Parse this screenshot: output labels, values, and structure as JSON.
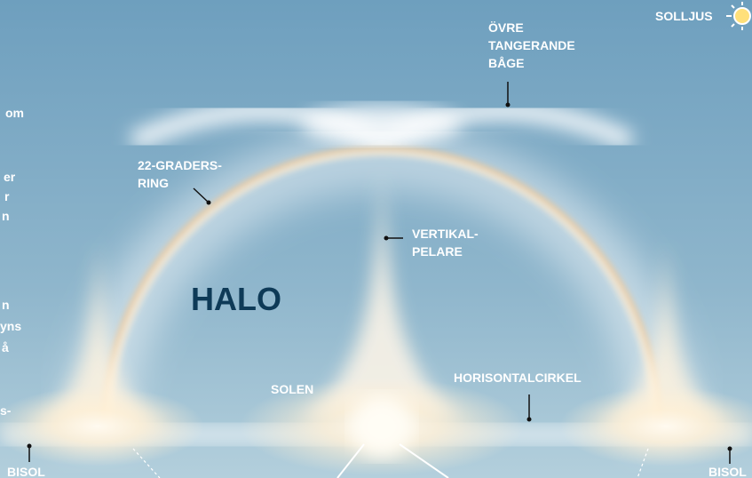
{
  "labels": {
    "sunlight": "SOLLJUS",
    "upper_tangent_arc": [
      "ÖVRE",
      "TANGERANDE",
      "BÅGE"
    ],
    "ring_22": [
      "22-GRADERS-",
      "RING"
    ],
    "vertical_pillar": [
      "VERTIKAL-",
      "PELARE"
    ],
    "halo": "HALO",
    "sun": "SOLEN",
    "horizontal_circle": "HORISONTALCIRKEL",
    "sundog_left": "BISOL",
    "sundog_right": "BISOL",
    "left_fragments": [
      "om",
      "er",
      "r",
      "n",
      "n",
      "yns",
      "å",
      "s-"
    ]
  }
}
